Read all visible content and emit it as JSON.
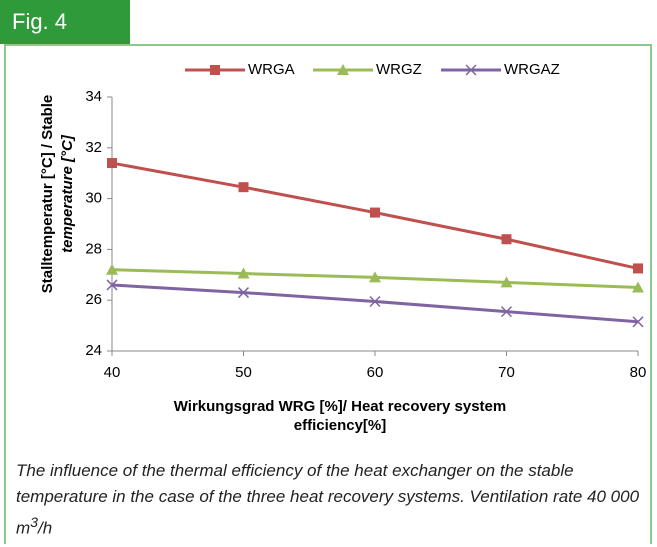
{
  "chart_data": {
    "type": "line",
    "figure_label": "Fig. 4",
    "ylabel": [
      "Stalltemperatur [°C] / Stable",
      "temperature  [°C]"
    ],
    "xlabel": [
      "Wirkungsgrad WRG [%]/ Heat recovery system",
      "efficiency[%]"
    ],
    "x": [
      40,
      50,
      60,
      70,
      80
    ],
    "series": [
      {
        "name": "WRGA",
        "color": "#c0504d",
        "marker": "square",
        "values": [
          31.4,
          30.45,
          29.45,
          28.4,
          27.25
        ]
      },
      {
        "name": "WRGZ",
        "color": "#9bbb59",
        "marker": "triangle",
        "values": [
          27.2,
          27.05,
          26.9,
          26.7,
          26.5
        ]
      },
      {
        "name": "WRGAZ",
        "color": "#8064a2",
        "marker": "x",
        "values": [
          26.6,
          26.3,
          25.95,
          25.55,
          25.15
        ]
      }
    ],
    "xlim": [
      40,
      80
    ],
    "xticks": [
      40,
      50,
      60,
      70,
      80
    ],
    "ylim": [
      24,
      34
    ],
    "yticks": [
      24,
      26,
      28,
      30,
      32,
      34
    ],
    "grid": false,
    "legend": "top",
    "caption": {
      "text": "The influence of the thermal efficiency of the heat exchanger on the stable temperature in the case of the three heat recovery systems. Ventilation rate 40 000 m",
      "sup": "3",
      "tail": "/h"
    }
  }
}
